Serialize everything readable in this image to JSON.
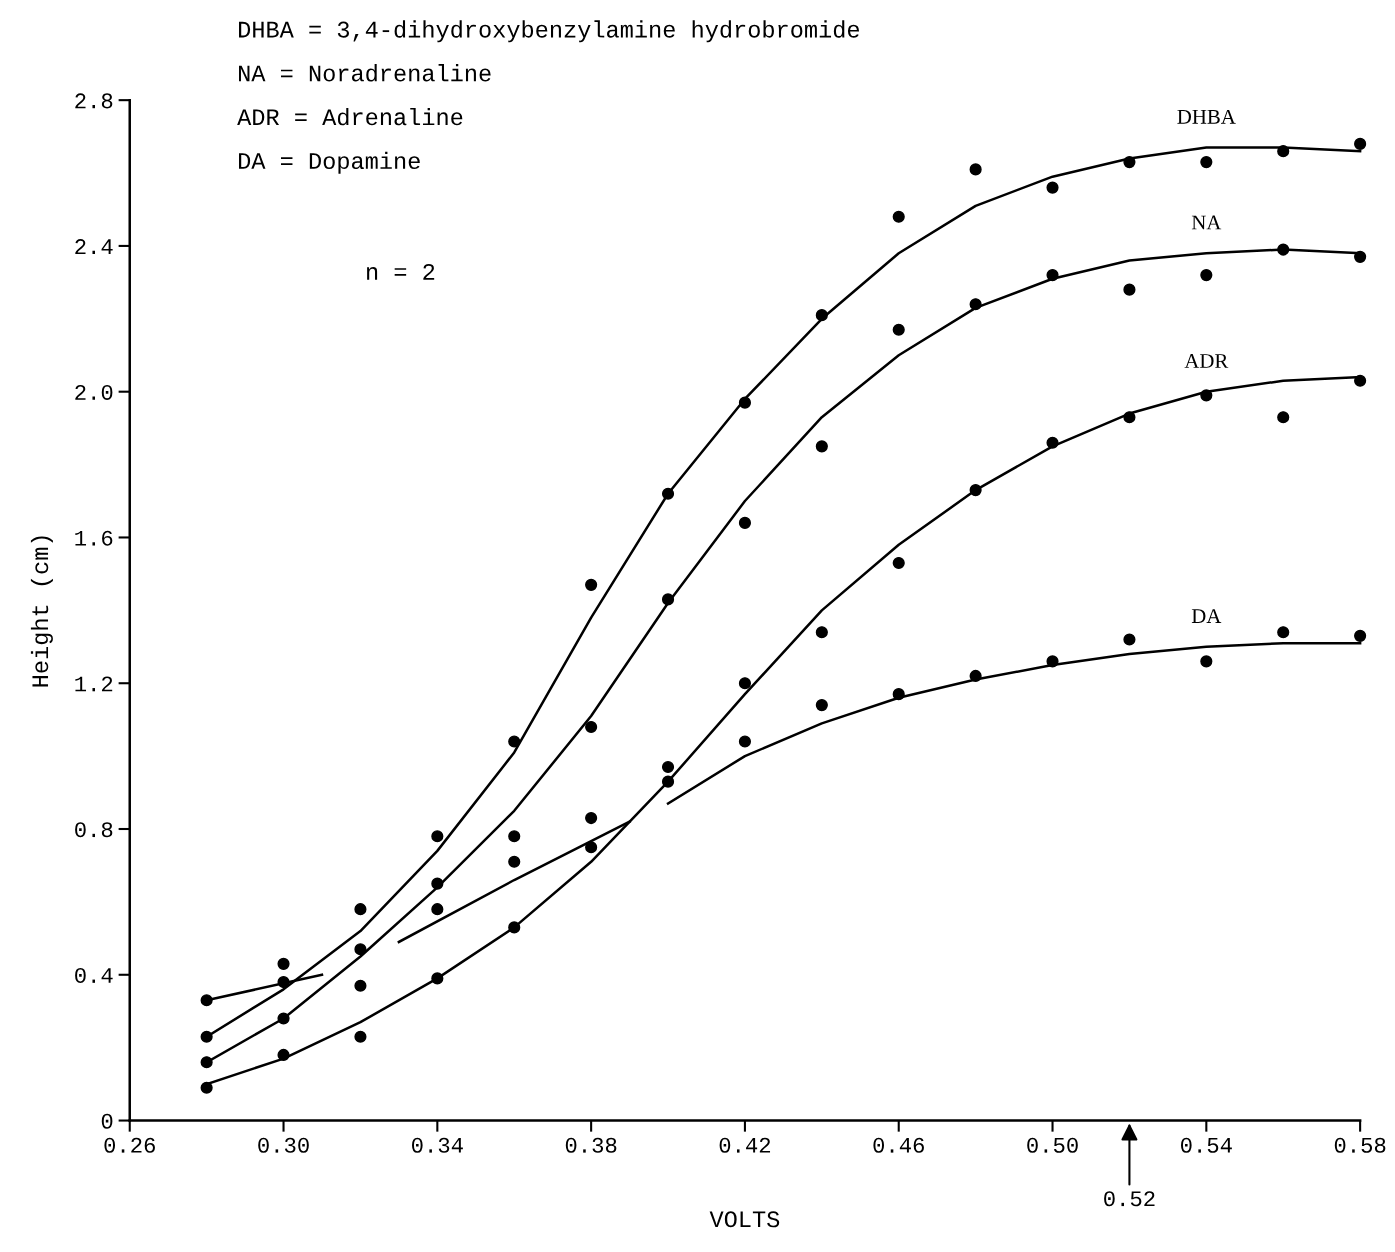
{
  "chart_data": {
    "type": "scatter",
    "xlabel": "VOLTS",
    "ylabel": "Height (cm)",
    "xlim": [
      0.26,
      0.58
    ],
    "ylim": [
      0,
      2.8
    ],
    "xticks": [
      {
        "value": 0.26,
        "label": "0.26"
      },
      {
        "value": 0.3,
        "label": "0.30"
      },
      {
        "value": 0.34,
        "label": "0.34"
      },
      {
        "value": 0.38,
        "label": "0.38"
      },
      {
        "value": 0.42,
        "label": "0.42"
      },
      {
        "value": 0.46,
        "label": "0.46"
      },
      {
        "value": 0.5,
        "label": "0.50"
      },
      {
        "value": 0.54,
        "label": "0.54"
      },
      {
        "value": 0.58,
        "label": "0.58"
      }
    ],
    "yticks": [
      0,
      0.4,
      0.8,
      1.2,
      1.6,
      {
        "value": 2.0,
        "label": "2.0"
      },
      2.4,
      2.8
    ],
    "grid": false,
    "legend": false,
    "marker": "circle",
    "series": [
      {
        "type": "scatter",
        "color": "#000000",
        "x": [
          0.28,
          0.3,
          0.32,
          0.34,
          0.36,
          0.38,
          0.4,
          0.42,
          0.44,
          0.46,
          0.48,
          0.5,
          0.52,
          0.54,
          0.56,
          0.58
        ],
        "values": [
          0.23,
          0.38,
          0.58,
          0.78,
          1.04,
          1.47,
          1.72,
          1.97,
          2.21,
          2.48,
          2.61,
          2.56,
          2.63,
          2.63,
          2.66,
          2.68
        ]
      },
      {
        "type": "scatter",
        "color": "#000000",
        "x": [
          0.28,
          0.3,
          0.32,
          0.34,
          0.36,
          0.38,
          0.4,
          0.42,
          0.44,
          0.46,
          0.48,
          0.5,
          0.52,
          0.54,
          0.56,
          0.58
        ],
        "values": [
          0.16,
          0.28,
          0.47,
          0.65,
          0.78,
          1.08,
          1.43,
          1.64,
          1.85,
          2.17,
          2.24,
          2.32,
          2.28,
          2.32,
          2.39,
          2.37
        ]
      },
      {
        "type": "scatter",
        "color": "#000000",
        "x": [
          0.28,
          0.3,
          0.32,
          0.34,
          0.36,
          0.38,
          0.4,
          0.42,
          0.44,
          0.46,
          0.48,
          0.5,
          0.52,
          0.54,
          0.56,
          0.58
        ],
        "values": [
          0.09,
          0.18,
          0.23,
          0.39,
          0.53,
          0.75,
          0.97,
          1.2,
          1.34,
          1.53,
          1.73,
          1.86,
          1.93,
          1.99,
          1.93,
          2.03
        ]
      },
      {
        "type": "scatter",
        "color": "#000000",
        "x": [
          0.28,
          0.3,
          0.32,
          0.34,
          0.36,
          0.38,
          0.4,
          0.42,
          0.44,
          0.46,
          0.48,
          0.5,
          0.52,
          0.54,
          0.56,
          0.58
        ],
        "values": [
          0.33,
          0.43,
          0.37,
          0.58,
          0.71,
          0.83,
          0.93,
          1.04,
          1.14,
          1.17,
          1.22,
          1.26,
          1.32,
          1.26,
          1.34,
          1.33
        ]
      },
      {
        "type": "line",
        "name": "DHBA",
        "color": "#000000",
        "marker": "none",
        "line_style": "solid",
        "x": [
          0.28,
          0.3,
          0.32,
          0.34,
          0.36,
          0.38,
          0.4,
          0.42,
          0.44,
          0.46,
          0.48,
          0.5,
          0.52,
          0.54,
          0.56,
          0.58
        ],
        "values": [
          0.23,
          0.36,
          0.52,
          0.74,
          1.01,
          1.38,
          1.72,
          1.98,
          2.2,
          2.38,
          2.51,
          2.59,
          2.64,
          2.67,
          2.67,
          2.66
        ]
      },
      {
        "type": "line",
        "name": "NA",
        "color": "#000000",
        "marker": "none",
        "line_style": "solid",
        "x": [
          0.28,
          0.3,
          0.32,
          0.34,
          0.36,
          0.38,
          0.4,
          0.42,
          0.44,
          0.46,
          0.48,
          0.5,
          0.52,
          0.54,
          0.56,
          0.58
        ],
        "values": [
          0.16,
          0.28,
          0.45,
          0.64,
          0.85,
          1.11,
          1.42,
          1.7,
          1.93,
          2.1,
          2.23,
          2.31,
          2.36,
          2.38,
          2.39,
          2.38
        ]
      },
      {
        "type": "line",
        "name": "ADR",
        "color": "#000000",
        "marker": "none",
        "line_style": "solid",
        "x": [
          0.28,
          0.3,
          0.32,
          0.34,
          0.36,
          0.38,
          0.4,
          0.42,
          0.44,
          0.46,
          0.48,
          0.5,
          0.52,
          0.54,
          0.56,
          0.58
        ],
        "values": [
          0.1,
          0.17,
          0.27,
          0.39,
          0.53,
          0.71,
          0.93,
          1.17,
          1.4,
          1.58,
          1.73,
          1.85,
          1.94,
          2.0,
          2.03,
          2.04
        ]
      },
      {
        "type": "line",
        "name": "DA",
        "color": "#000000",
        "marker": "none",
        "line_style": "solid",
        "x": [
          0.28,
          0.31,
          0.32,
          0.33,
          0.36,
          0.39,
          0.395,
          0.4,
          0.42,
          0.44,
          0.46,
          0.48,
          0.5,
          0.52,
          0.54,
          0.56,
          0.58
        ],
        "values": [
          0.33,
          0.4,
          null,
          0.49,
          0.66,
          0.82,
          null,
          0.87,
          1.0,
          1.09,
          1.16,
          1.21,
          1.25,
          1.28,
          1.3,
          1.31,
          1.31
        ]
      }
    ],
    "annotations": [
      "DHBA = 3,4-dihydroxybenzylamine hydrobromide",
      "NA = Noradrenaline",
      "ADR = Adrenaline",
      "DA = Dopamine",
      "n = 2",
      "0.52"
    ]
  }
}
